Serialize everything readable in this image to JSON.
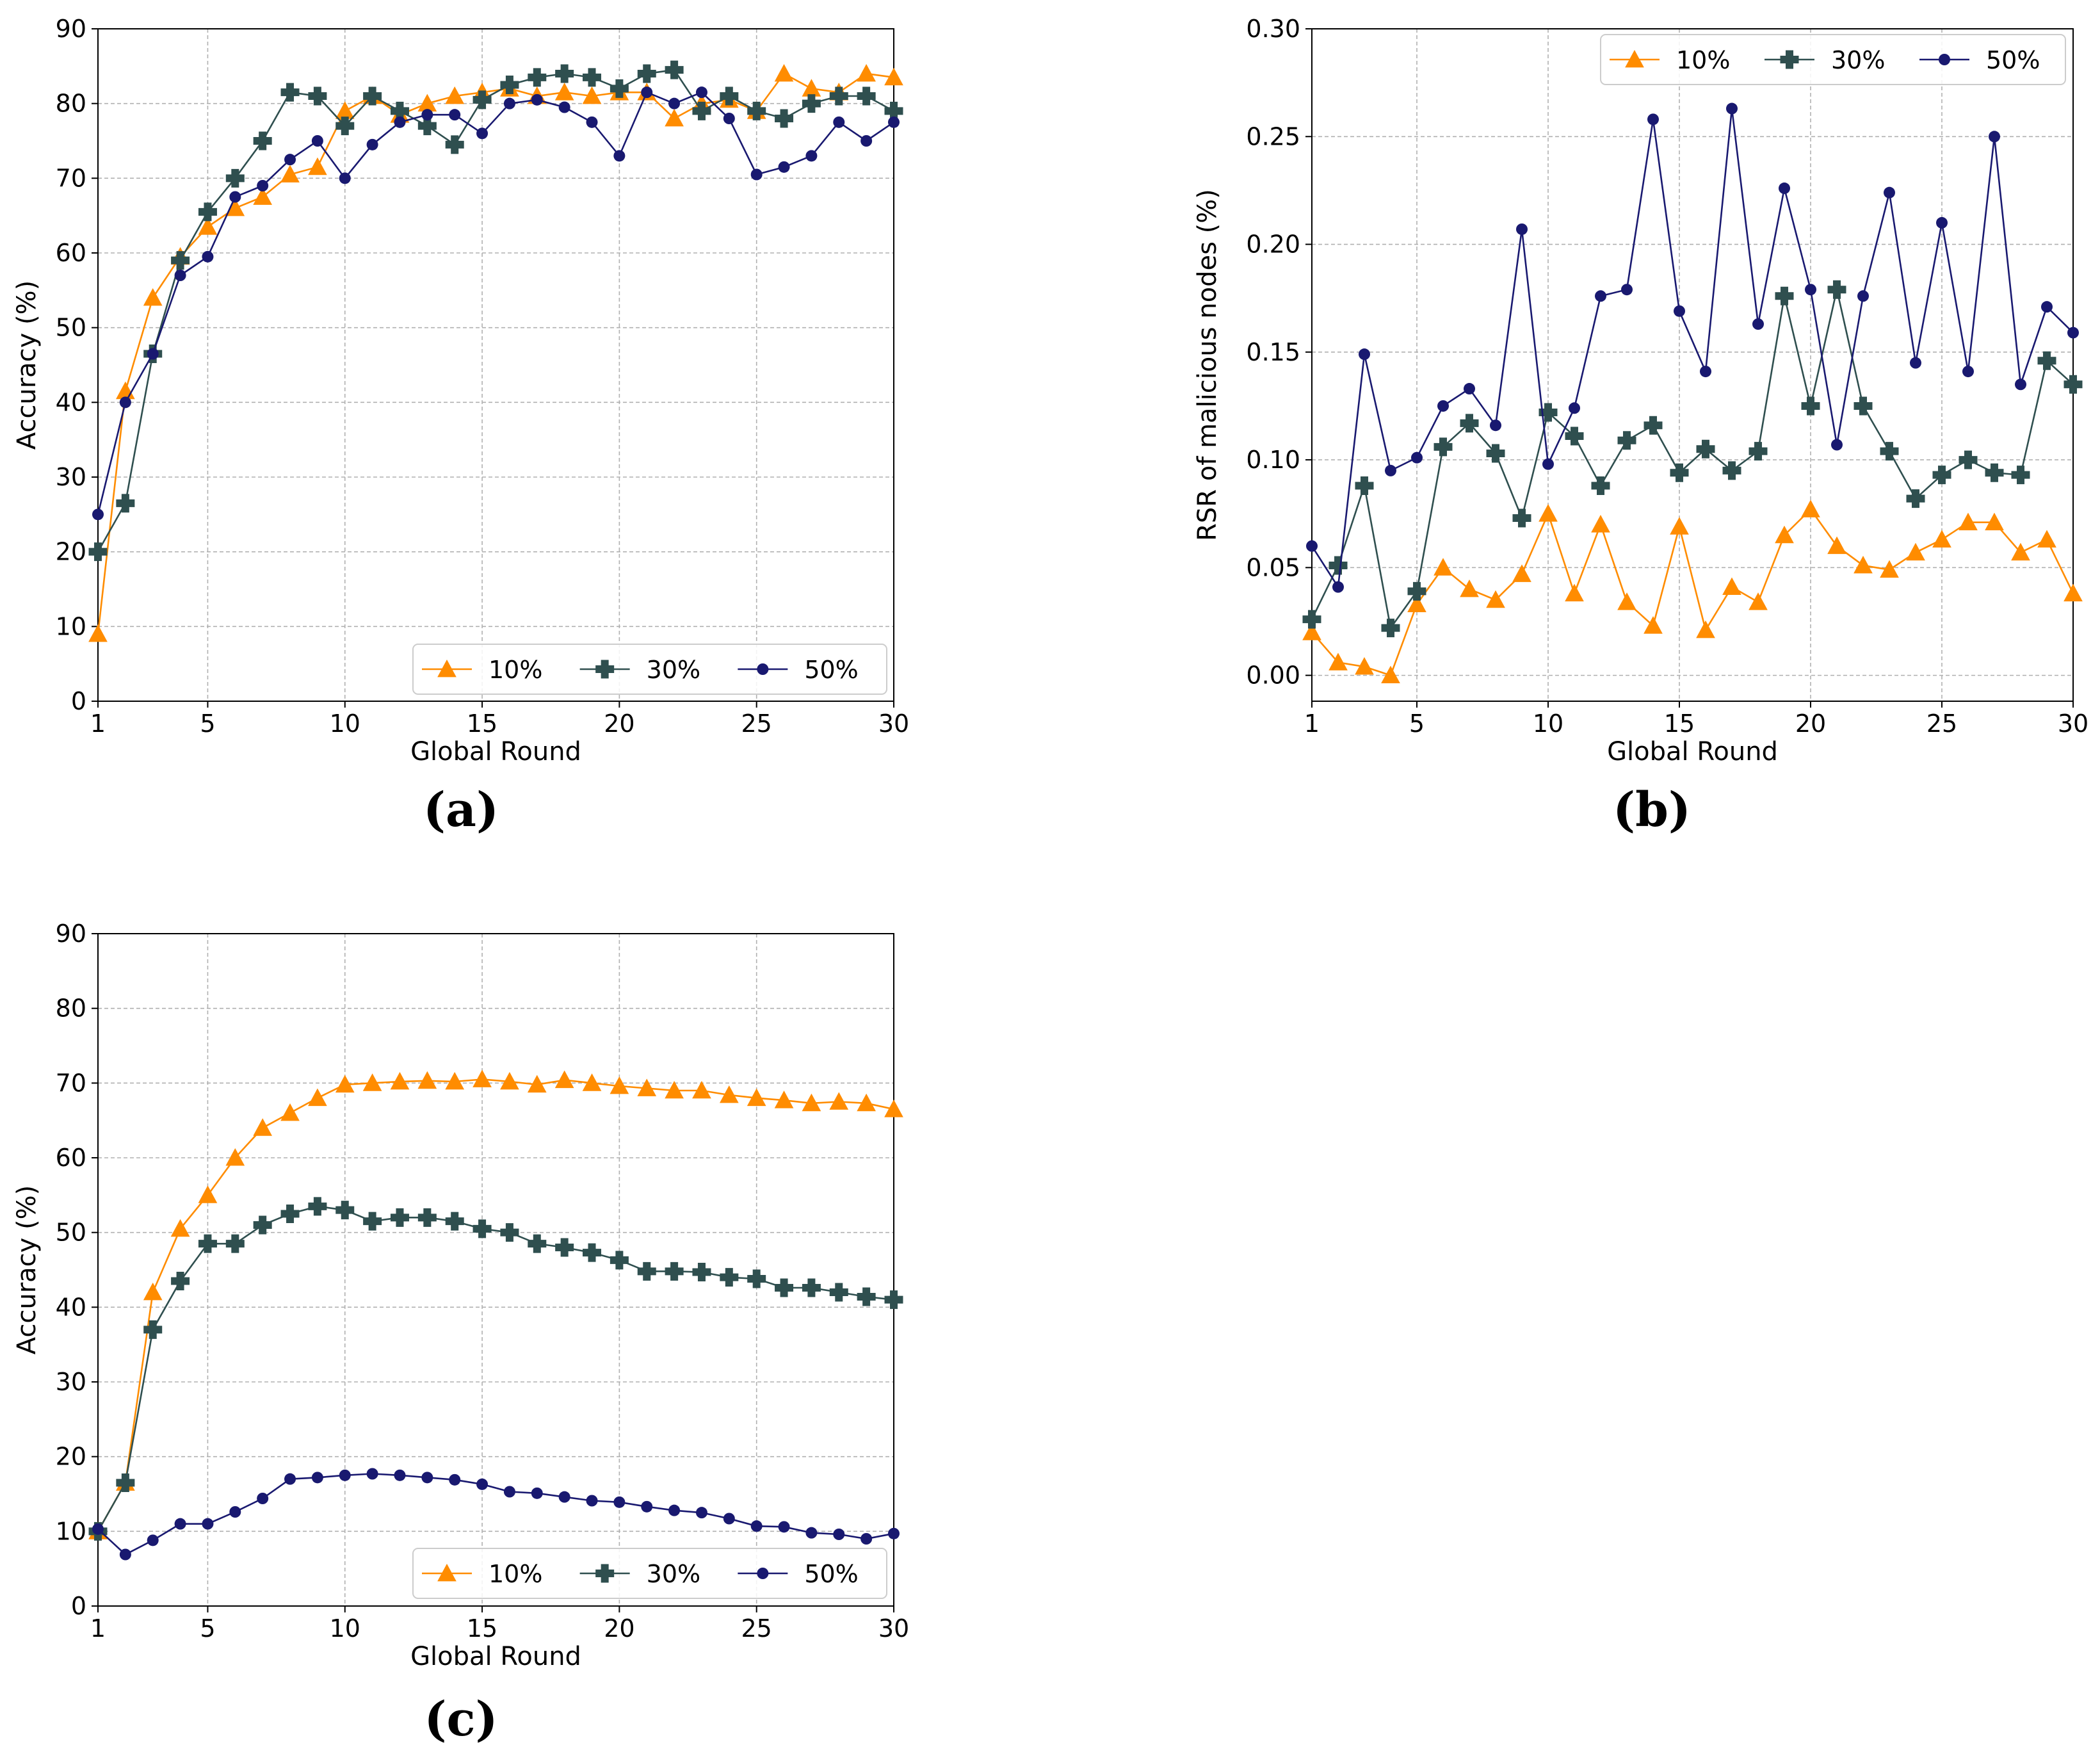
{
  "colors": {
    "s10": "#ff8c00",
    "s30": "#2f4f4f",
    "s50": "#191970",
    "grid": "#b0b0b0",
    "axis": "#000000"
  },
  "chart_data": [
    {
      "id": "a",
      "caption": "(a)",
      "type": "line",
      "title": "",
      "xlabel": "Global Round",
      "ylabel": "Accuracy (%)",
      "xlim": [
        1,
        30
      ],
      "ylim": [
        0,
        90
      ],
      "xticks": [
        1,
        5,
        10,
        15,
        20,
        25,
        30
      ],
      "yticks": [
        "0",
        "10",
        "20",
        "30",
        "40",
        "50",
        "60",
        "70",
        "80",
        "90"
      ],
      "ytick_values": [
        0,
        10,
        20,
        30,
        40,
        50,
        60,
        70,
        80,
        90
      ],
      "grid": true,
      "legend_position": "bottom-right",
      "x": [
        1,
        2,
        3,
        4,
        5,
        6,
        7,
        8,
        9,
        10,
        11,
        12,
        13,
        14,
        15,
        16,
        17,
        18,
        19,
        20,
        21,
        22,
        23,
        24,
        25,
        26,
        27,
        28,
        29,
        30
      ],
      "series": [
        {
          "name": "10%",
          "marker": "triangle",
          "values": [
            9,
            41.5,
            54,
            59.5,
            63.5,
            66,
            67.5,
            70.5,
            71.5,
            79,
            81,
            78.5,
            80,
            81,
            81.5,
            82,
            81,
            81.5,
            81,
            81.5,
            81.5,
            78,
            80,
            80.5,
            79,
            84,
            82,
            81.5,
            84,
            83.5
          ]
        },
        {
          "name": "30%",
          "marker": "plus",
          "values": [
            20,
            26.5,
            46.5,
            59,
            65.5,
            70,
            75,
            81.5,
            81,
            77,
            81,
            79,
            77,
            74.5,
            80.5,
            82.5,
            83.5,
            84,
            83.5,
            82,
            84,
            84.5,
            79,
            81,
            79,
            78,
            80,
            81,
            81,
            79
          ]
        },
        {
          "name": "50%",
          "marker": "circle",
          "values": [
            25,
            40,
            46.5,
            57,
            59.5,
            67.5,
            69,
            72.5,
            75,
            70,
            74.5,
            77.5,
            78.5,
            78.5,
            76,
            80,
            80.5,
            79.5,
            77.5,
            73,
            81.5,
            80,
            81.5,
            78,
            70.5,
            71.5,
            73,
            77.5,
            75,
            77.5
          ]
        }
      ]
    },
    {
      "id": "b",
      "caption": "(b)",
      "type": "line",
      "title": "",
      "xlabel": "Global Round",
      "ylabel": "RSR of malicious nodes (%)",
      "xlim": [
        1,
        30
      ],
      "ylim": [
        -0.012,
        0.3
      ],
      "xticks": [
        1,
        5,
        10,
        15,
        20,
        25,
        30
      ],
      "yticks": [
        "0.00",
        "0.05",
        "0.10",
        "0.15",
        "0.20",
        "0.25",
        "0.30"
      ],
      "ytick_values": [
        0,
        0.05,
        0.1,
        0.15,
        0.2,
        0.25,
        0.3
      ],
      "grid": true,
      "legend_position": "top-right",
      "x": [
        1,
        2,
        3,
        4,
        5,
        6,
        7,
        8,
        9,
        10,
        11,
        12,
        13,
        14,
        15,
        16,
        17,
        18,
        19,
        20,
        21,
        22,
        23,
        24,
        25,
        26,
        27,
        28,
        29,
        30
      ],
      "series": [
        {
          "name": "10%",
          "marker": "triangle",
          "values": [
            0.02,
            0.006,
            0.004,
            0.0,
            0.033,
            0.05,
            0.04,
            0.035,
            0.047,
            0.075,
            0.038,
            0.07,
            0.034,
            0.023,
            0.069,
            0.021,
            0.041,
            0.034,
            0.065,
            0.077,
            0.06,
            0.051,
            0.049,
            0.057,
            0.063,
            0.071,
            0.071,
            0.057,
            0.063,
            0.038
          ]
        },
        {
          "name": "30%",
          "marker": "plus",
          "values": [
            0.026,
            0.051,
            0.088,
            0.022,
            0.039,
            0.106,
            0.117,
            0.103,
            0.073,
            0.122,
            0.111,
            0.088,
            0.109,
            0.116,
            0.094,
            0.105,
            0.095,
            0.104,
            0.176,
            0.125,
            0.179,
            0.125,
            0.104,
            0.082,
            0.093,
            0.1,
            0.094,
            0.093,
            0.146,
            0.135
          ]
        },
        {
          "name": "50%",
          "marker": "circle",
          "values": [
            0.06,
            0.041,
            0.149,
            0.095,
            0.101,
            0.125,
            0.133,
            0.116,
            0.207,
            0.098,
            0.124,
            0.176,
            0.179,
            0.258,
            0.169,
            0.141,
            0.263,
            0.163,
            0.226,
            0.179,
            0.107,
            0.176,
            0.224,
            0.145,
            0.21,
            0.141,
            0.25,
            0.135,
            0.171,
            0.159
          ]
        }
      ]
    },
    {
      "id": "c",
      "caption": "(c)",
      "type": "line",
      "title": "",
      "xlabel": "Global Round",
      "ylabel": "Accuracy (%)",
      "xlim": [
        1,
        30
      ],
      "ylim": [
        0,
        90
      ],
      "xticks": [
        1,
        5,
        10,
        15,
        20,
        25,
        30
      ],
      "yticks": [
        "0",
        "10",
        "20",
        "30",
        "40",
        "50",
        "60",
        "70",
        "80",
        "90"
      ],
      "ytick_values": [
        0,
        10,
        20,
        30,
        40,
        50,
        60,
        70,
        80,
        90
      ],
      "grid": true,
      "legend_position": "bottom-right",
      "x": [
        1,
        2,
        3,
        4,
        5,
        6,
        7,
        8,
        9,
        10,
        11,
        12,
        13,
        14,
        15,
        16,
        17,
        18,
        19,
        20,
        21,
        22,
        23,
        24,
        25,
        26,
        27,
        28,
        29,
        30
      ],
      "series": [
        {
          "name": "10%",
          "marker": "triangle",
          "values": [
            10,
            16.5,
            42,
            50.5,
            55,
            60,
            64,
            66,
            68,
            69.8,
            70,
            70.2,
            70.3,
            70.2,
            70.5,
            70.2,
            69.8,
            70.4,
            70,
            69.6,
            69.3,
            69,
            69,
            68.4,
            68,
            67.7,
            67.3,
            67.5,
            67.3,
            66.5
          ]
        },
        {
          "name": "30%",
          "marker": "plus",
          "values": [
            10,
            16.5,
            37,
            43.5,
            48.5,
            48.5,
            51,
            52.5,
            53.5,
            53,
            51.5,
            52,
            52,
            51.5,
            50.5,
            50,
            48.5,
            48,
            47.3,
            46.3,
            44.8,
            44.8,
            44.7,
            44,
            43.8,
            42.6,
            42.6,
            42,
            41.4,
            41
          ]
        },
        {
          "name": "50%",
          "marker": "circle",
          "values": [
            10.3,
            6.9,
            8.8,
            11,
            11,
            12.6,
            14.4,
            17,
            17.2,
            17.5,
            17.7,
            17.5,
            17.2,
            16.9,
            16.3,
            15.3,
            15.1,
            14.6,
            14.1,
            13.9,
            13.3,
            12.8,
            12.5,
            11.7,
            10.7,
            10.6,
            9.8,
            9.6,
            9,
            9.7
          ]
        }
      ]
    }
  ]
}
